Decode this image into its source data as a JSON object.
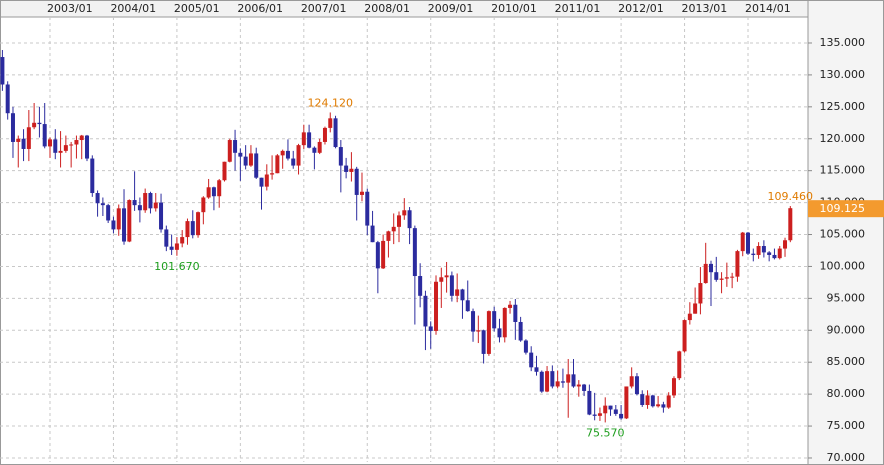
{
  "chart_data": {
    "type": "candlestick",
    "categories": [
      null,
      null,
      null,
      null,
      null,
      null,
      null,
      null,
      null,
      "2003/01",
      null,
      null,
      null,
      null,
      null,
      null,
      null,
      null,
      null,
      null,
      null,
      "2004/01",
      null,
      null,
      null,
      null,
      null,
      null,
      null,
      null,
      null,
      null,
      null,
      "2005/01",
      null,
      null,
      null,
      null,
      null,
      null,
      null,
      null,
      null,
      null,
      null,
      "2006/01",
      null,
      null,
      null,
      null,
      null,
      null,
      null,
      null,
      null,
      null,
      null,
      "2007/01",
      null,
      null,
      null,
      null,
      null,
      null,
      null,
      null,
      null,
      null,
      null,
      "2008/01",
      null,
      null,
      null,
      null,
      null,
      null,
      null,
      null,
      null,
      null,
      null,
      "2009/01",
      null,
      null,
      null,
      null,
      null,
      null,
      null,
      null,
      null,
      null,
      null,
      "2010/01",
      null,
      null,
      null,
      null,
      null,
      null,
      null,
      null,
      null,
      null,
      null,
      "2011/01",
      null,
      null,
      null,
      null,
      null,
      null,
      null,
      null,
      null,
      null,
      null,
      "2012/01",
      null,
      null,
      null,
      null,
      null,
      null,
      null,
      null,
      null,
      null,
      null,
      "2013/01",
      null,
      null,
      null,
      null,
      null,
      null,
      null,
      null,
      null,
      null,
      null,
      "2014/01",
      null,
      null,
      null,
      null,
      null,
      null,
      null,
      null
    ],
    "open": [
      132.8,
      128.5,
      124.0,
      119.5,
      120.0,
      118.4,
      121.8,
      122.5,
      122.3,
      118.8,
      119.9,
      117.8,
      118.1,
      119.0,
      119.1,
      119.8,
      120.5,
      116.9,
      111.5,
      109.9,
      109.6,
      107.2,
      105.8,
      109.1,
      103.9,
      110.4,
      109.6,
      108.8,
      111.5,
      109.1,
      110.0,
      105.8,
      103.1,
      102.6,
      103.6,
      104.6,
      107.1,
      104.9,
      108.5,
      110.8,
      112.4,
      111.0,
      113.5,
      116.4,
      119.8,
      117.8,
      117.2,
      115.8,
      117.7,
      113.9,
      112.5,
      114.4,
      114.6,
      117.4,
      118.1,
      116.9,
      115.8,
      119.0,
      121.0,
      118.6,
      117.8,
      119.5,
      121.7,
      123.2,
      118.7,
      115.8,
      114.8,
      115.3,
      111.2,
      111.7,
      106.4,
      103.8,
      99.7,
      104.0,
      105.5,
      106.2,
      108.0,
      108.8,
      106.0,
      98.5,
      95.4,
      90.6,
      89.9,
      97.6,
      98.3,
      98.6,
      95.4,
      96.4,
      94.7,
      93.0,
      89.8,
      90.0,
      86.3,
      93.0,
      90.3,
      88.9,
      93.5,
      94.0,
      91.3,
      88.4,
      86.5,
      84.2,
      83.5,
      80.4,
      83.6,
      81.2,
      82.0,
      81.8,
      83.1,
      81.2,
      81.5,
      80.5,
      76.8,
      76.6,
      77.0,
      78.2,
      77.6,
      76.9,
      76.2,
      81.2,
      82.8,
      80.0,
      78.3,
      79.8,
      78.1,
      78.4,
      77.9,
      79.8,
      82.5,
      86.7,
      91.6,
      92.6,
      94.2,
      97.4,
      100.4,
      99.1,
      97.9,
      98.1,
      98.3,
      98.4,
      102.4,
      105.3,
      102.0,
      101.8,
      103.2,
      102.2,
      101.8,
      101.3,
      102.8,
      104.1
    ],
    "high": [
      133.9,
      129.0,
      125.0,
      120.5,
      121.5,
      124.5,
      125.6,
      125.0,
      125.6,
      120.2,
      121.5,
      121.2,
      120.5,
      119.5,
      120.5,
      120.6,
      120.6,
      117.4,
      111.9,
      110.8,
      109.8,
      107.8,
      109.7,
      112.1,
      110.5,
      114.9,
      110.8,
      112.2,
      111.7,
      111.5,
      111.4,
      106.4,
      105.0,
      104.6,
      105.7,
      107.5,
      108.8,
      108.6,
      111.0,
      113.7,
      112.5,
      113.7,
      116.4,
      120.0,
      121.4,
      118.5,
      119.0,
      119.0,
      118.6,
      113.9,
      116.0,
      117.4,
      117.6,
      118.3,
      119.9,
      118.1,
      119.2,
      122.2,
      122.2,
      118.8,
      120.0,
      121.9,
      124.12,
      123.6,
      119.8,
      117.0,
      117.9,
      115.6,
      114.7,
      112.2,
      108.7,
      104.0,
      105.0,
      105.6,
      108.3,
      108.6,
      110.7,
      109.3,
      106.4,
      100.5,
      96.2,
      91.4,
      98.6,
      99.8,
      100.7,
      99.2,
      98.9,
      96.5,
      97.8,
      93.4,
      92.3,
      90.1,
      93.1,
      93.7,
      91.8,
      93.6,
      94.6,
      94.9,
      92.1,
      88.6,
      87.5,
      86.0,
      83.7,
      84.4,
      84.5,
      83.7,
      84.0,
      85.5,
      85.5,
      82.2,
      81.6,
      81.5,
      80.2,
      77.9,
      79.5,
      78.2,
      78.3,
      78.3,
      81.2,
      84.2,
      83.3,
      80.6,
      80.6,
      79.9,
      79.7,
      78.8,
      80.3,
      82.8,
      86.8,
      91.7,
      94.4,
      96.7,
      99.9,
      103.7,
      100.9,
      101.5,
      99.1,
      100.6,
      99.0,
      102.6,
      105.4,
      105.4,
      102.8,
      103.8,
      104.1,
      102.4,
      102.8,
      103.2,
      104.5,
      109.46
    ],
    "low": [
      127.5,
      123.0,
      117.0,
      115.5,
      116.5,
      116.5,
      121.5,
      120.2,
      118.5,
      117.0,
      116.8,
      115.5,
      117.8,
      115.5,
      116.9,
      116.8,
      116.5,
      110.9,
      107.8,
      107.9,
      106.8,
      105.2,
      104.8,
      103.4,
      103.8,
      108.7,
      106.9,
      108.4,
      108.3,
      108.6,
      105.3,
      102.4,
      101.8,
      101.67,
      103.0,
      103.4,
      104.4,
      104.5,
      106.6,
      110.6,
      108.8,
      109.2,
      113.3,
      116.3,
      115.0,
      113.4,
      115.2,
      115.6,
      113.7,
      108.9,
      111.9,
      113.6,
      114.6,
      115.3,
      116.6,
      115.3,
      114.4,
      118.4,
      118.5,
      115.2,
      117.6,
      119.1,
      121.0,
      118.5,
      111.6,
      113.8,
      113.3,
      107.2,
      110.2,
      104.9,
      103.8,
      95.8,
      99.6,
      101.4,
      103.5,
      103.8,
      107.3,
      103.5,
      90.9,
      93.6,
      86.9,
      87.1,
      89.3,
      93.5,
      95.9,
      94.5,
      94.4,
      91.8,
      92.9,
      88.2,
      88.0,
      84.8,
      86.0,
      89.8,
      88.1,
      88.1,
      92.6,
      88.5,
      88.2,
      86.2,
      83.6,
      82.9,
      80.2,
      80.3,
      80.9,
      80.9,
      81.0,
      76.3,
      81.0,
      79.6,
      79.7,
      76.7,
      75.9,
      75.8,
      75.57,
      76.6,
      76.6,
      76.0,
      76.1,
      80.9,
      79.8,
      78.0,
      77.7,
      77.9,
      77.9,
      77.1,
      77.7,
      79.4,
      82.2,
      86.5,
      90.9,
      92.6,
      92.5,
      97.3,
      93.8,
      97.6,
      95.8,
      96.8,
      96.6,
      97.6,
      101.6,
      101.8,
      100.8,
      101.2,
      101.4,
      100.8,
      101.1,
      101.1,
      101.5,
      103.8
    ],
    "close": [
      128.5,
      124.0,
      119.5,
      120.0,
      118.4,
      121.8,
      122.5,
      122.3,
      118.8,
      119.9,
      117.8,
      118.1,
      119.0,
      119.1,
      119.8,
      120.5,
      116.9,
      111.5,
      109.9,
      109.6,
      107.2,
      105.8,
      109.1,
      103.9,
      110.4,
      109.6,
      108.8,
      111.5,
      109.1,
      110.0,
      105.8,
      103.1,
      102.6,
      103.6,
      104.6,
      107.1,
      104.9,
      108.5,
      110.8,
      112.4,
      111.0,
      113.5,
      116.4,
      119.8,
      117.8,
      117.2,
      115.8,
      117.7,
      113.9,
      112.5,
      114.4,
      114.6,
      117.4,
      118.1,
      116.9,
      115.8,
      119.0,
      121.0,
      118.6,
      117.8,
      119.5,
      121.7,
      123.2,
      118.7,
      115.8,
      114.8,
      115.3,
      111.2,
      111.7,
      106.4,
      103.8,
      99.7,
      104.0,
      105.5,
      106.2,
      108.0,
      108.8,
      106.0,
      98.5,
      95.4,
      90.6,
      89.9,
      97.6,
      98.3,
      98.6,
      95.4,
      96.4,
      94.7,
      93.0,
      89.8,
      90.0,
      86.3,
      93.0,
      90.3,
      88.9,
      93.5,
      94.0,
      91.3,
      88.4,
      86.5,
      84.2,
      83.5,
      80.4,
      83.6,
      81.2,
      82.0,
      81.8,
      83.1,
      81.2,
      81.5,
      80.5,
      76.8,
      76.6,
      77.0,
      78.2,
      77.6,
      76.9,
      76.2,
      81.2,
      82.8,
      80.0,
      78.3,
      79.8,
      78.1,
      78.4,
      77.9,
      79.8,
      82.5,
      86.7,
      91.6,
      92.6,
      94.2,
      97.4,
      100.4,
      99.1,
      97.9,
      98.1,
      98.3,
      98.4,
      102.4,
      105.3,
      102.0,
      101.8,
      103.2,
      102.2,
      101.8,
      101.3,
      102.8,
      104.1,
      109.125
    ],
    "up_color": "#cc1f1f",
    "down_color": "#2b2b9e",
    "ylim": [
      69.37,
      139.07
    ],
    "yticks": [
      {
        "value": 70,
        "label": "70.000"
      },
      {
        "value": 75,
        "label": "75.000"
      },
      {
        "value": 80,
        "label": "80.000"
      },
      {
        "value": 85,
        "label": "85.000"
      },
      {
        "value": 90,
        "label": "90.000"
      },
      {
        "value": 95,
        "label": "95.000"
      },
      {
        "value": 100,
        "label": "100.000"
      },
      {
        "value": 105,
        "label": "105.000"
      },
      {
        "value": 110,
        "label": "110.000"
      },
      {
        "value": 115,
        "label": "115.000"
      },
      {
        "value": 120,
        "label": "120.000"
      },
      {
        "value": 125,
        "label": "125.000"
      },
      {
        "value": 130,
        "label": "130.000"
      },
      {
        "value": 135,
        "label": "135.000"
      }
    ],
    "grid": true,
    "annotations": [
      {
        "value": 124.12,
        "label": "124.120",
        "kind": "high",
        "color": "#e07b00"
      },
      {
        "value": 101.67,
        "label": "101.670",
        "kind": "low",
        "color": "#1e9e1e"
      },
      {
        "value": 75.57,
        "label": "75.570",
        "kind": "low",
        "color": "#1e9e1e"
      },
      {
        "value": 109.46,
        "label": "109.460",
        "kind": "high",
        "color": "#e07b00"
      }
    ],
    "last_price": {
      "value": 109.125,
      "label": "109.125",
      "color": "#f39a2e"
    }
  }
}
